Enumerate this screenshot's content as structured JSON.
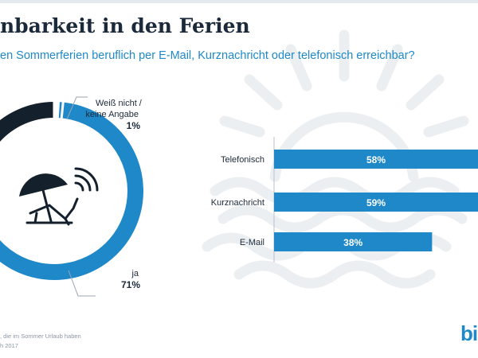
{
  "header": {
    "title": "nbarkeit in den Ferien",
    "subtitle": "en Sommerferien beruflich per E-Mail, Kurznachricht oder telefonisch erreichbar?"
  },
  "colors": {
    "accent": "#1e88c9",
    "dark": "#14202c",
    "text": "#1b2a3a",
    "watermark": "#eceff2"
  },
  "donut_labels": {
    "unknown_line1": "Weiß nicht /",
    "unknown_line2": "keine Angabe",
    "unknown_value": "1%",
    "yes_label": "ja",
    "yes_value": "71%"
  },
  "chart_data": [
    {
      "type": "pie",
      "variant": "donut",
      "title": "",
      "slices": [
        {
          "label": "ja",
          "value": 71
        },
        {
          "label": "Weiß nicht / keine Angabe",
          "value": 1
        },
        {
          "label": "",
          "value": 28
        }
      ]
    },
    {
      "type": "bar",
      "orientation": "horizontal",
      "categories": [
        "Telefonisch",
        "Kurznachricht",
        "E-Mail"
      ],
      "values": [
        58,
        59,
        38
      ],
      "value_labels": [
        "58%",
        "59%",
        "38%"
      ],
      "xlim": [
        0,
        100
      ]
    }
  ],
  "footer": {
    "source_line1": ", die im Sommer Urlaub haben",
    "source_line2": "h 2017",
    "logo": "bi"
  }
}
